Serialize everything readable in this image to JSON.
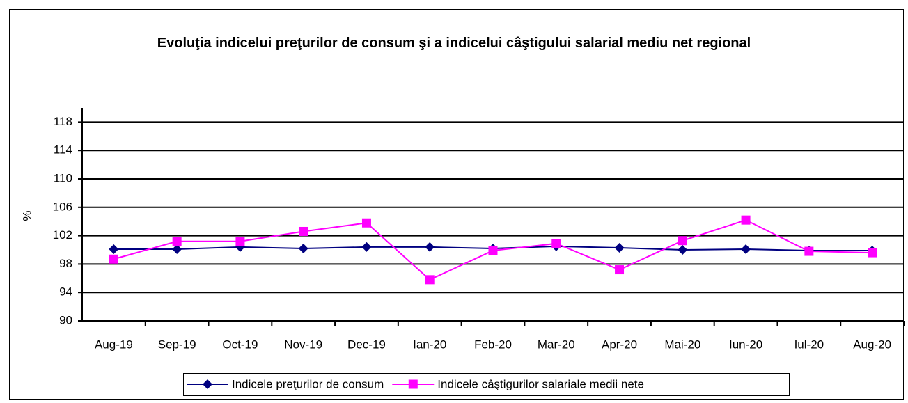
{
  "chart_data": {
    "type": "line",
    "title": "Evoluţia indicelui preţurilor de consum şi a indicelui câştigului salarial mediu net regional",
    "y_label": "%",
    "categories": [
      "Aug-19",
      "Sep-19",
      "Oct-19",
      "Nov-19",
      "Dec-19",
      "Ian-20",
      "Feb-20",
      "Mar-20",
      "Apr-20",
      "Mai-20",
      "Iun-20",
      "Iul-20",
      "Aug-20"
    ],
    "series": [
      {
        "name": "Indicele preţurilor de consum",
        "color": "#000080",
        "marker": "diamond",
        "values": [
          100.1,
          100.1,
          100.4,
          100.2,
          100.4,
          100.4,
          100.2,
          100.5,
          100.3,
          100.0,
          100.1,
          99.9,
          99.9
        ]
      },
      {
        "name": "Indicele câştigurilor salariale medii nete",
        "color": "#ff00ff",
        "marker": "square",
        "values": [
          98.7,
          101.2,
          101.2,
          102.6,
          103.8,
          95.8,
          99.9,
          100.9,
          97.2,
          101.3,
          104.2,
          99.8,
          99.6
        ]
      }
    ],
    "ylim": [
      90,
      120
    ],
    "yticks": [
      90,
      94,
      98,
      102,
      106,
      110,
      114,
      118
    ],
    "grid": true,
    "legend": "bottom"
  }
}
